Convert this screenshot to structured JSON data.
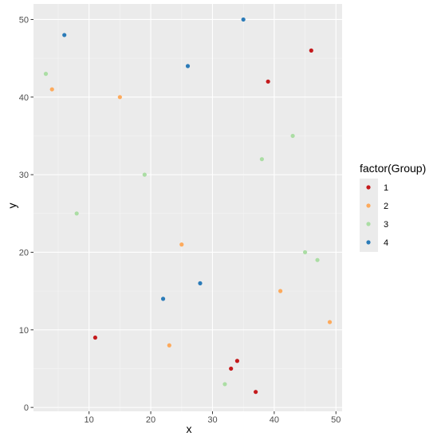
{
  "chart_data": {
    "type": "scatter",
    "xlabel": "x",
    "ylabel": "y",
    "xlim": [
      1,
      51
    ],
    "ylim": [
      -0.5,
      52
    ],
    "x_ticks": [
      10,
      20,
      30,
      40,
      50
    ],
    "y_ticks": [
      0,
      10,
      20,
      30,
      40,
      50
    ],
    "x_tick_labels": [
      "10",
      "20",
      "30",
      "40",
      "50"
    ],
    "y_tick_labels": [
      "0",
      "10",
      "20",
      "30",
      "40",
      "50"
    ],
    "grid": true,
    "legend": {
      "title": "factor(Group)",
      "placement": "right"
    },
    "colors": {
      "panel_background": "#ebebeb",
      "grid_major": "#ffffff",
      "grid_minor": "#f5f5f5",
      "tick": "#333333"
    },
    "series": [
      {
        "name": "1",
        "color": "#c41a1c",
        "points": [
          {
            "x": 46,
            "y": 46
          },
          {
            "x": 39,
            "y": 42
          },
          {
            "x": 11,
            "y": 9
          },
          {
            "x": 34,
            "y": 6
          },
          {
            "x": 33,
            "y": 5
          },
          {
            "x": 37,
            "y": 2
          }
        ]
      },
      {
        "name": "2",
        "color": "#fdaa5c",
        "points": [
          {
            "x": 4,
            "y": 41
          },
          {
            "x": 15,
            "y": 40
          },
          {
            "x": 25,
            "y": 21
          },
          {
            "x": 41,
            "y": 15
          },
          {
            "x": 49,
            "y": 11
          },
          {
            "x": 23,
            "y": 8
          }
        ]
      },
      {
        "name": "3",
        "color": "#abdda4",
        "points": [
          {
            "x": 3,
            "y": 43
          },
          {
            "x": 43,
            "y": 35
          },
          {
            "x": 38,
            "y": 32
          },
          {
            "x": 19,
            "y": 30
          },
          {
            "x": 8,
            "y": 25
          },
          {
            "x": 45,
            "y": 20
          },
          {
            "x": 47,
            "y": 19
          },
          {
            "x": 32,
            "y": 3
          }
        ]
      },
      {
        "name": "4",
        "color": "#2b7bb8",
        "points": [
          {
            "x": 35,
            "y": 50
          },
          {
            "x": 6,
            "y": 48
          },
          {
            "x": 26,
            "y": 44
          },
          {
            "x": 28,
            "y": 16
          },
          {
            "x": 22,
            "y": 14
          }
        ]
      }
    ]
  }
}
